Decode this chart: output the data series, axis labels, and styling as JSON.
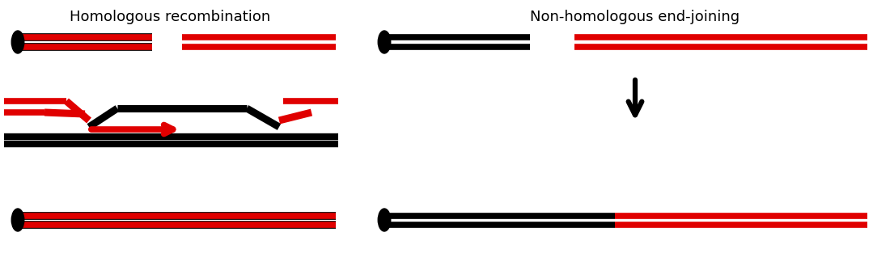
{
  "title_left": "Homologous recombination",
  "title_right": "Non-homologous end-joining",
  "bg_color": "#ffffff",
  "black": "#000000",
  "red": "#e00000",
  "title_fontsize": 13,
  "lw_chrom": 5.5,
  "lw_mid": 4.5
}
